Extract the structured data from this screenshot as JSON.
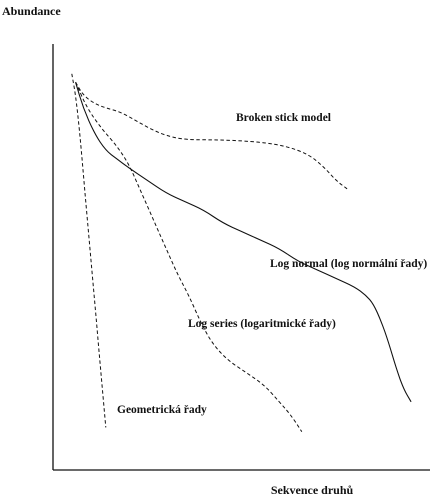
{
  "chart_data": {
    "type": "line",
    "title": "",
    "xlabel": "Sekvence druhů",
    "ylabel": "Abundance",
    "xlim": [
      0,
      100
    ],
    "ylim": [
      0,
      100
    ],
    "grid": false,
    "legend": "none",
    "series": [
      {
        "name": "Broken stick model",
        "style": "dashed",
        "points": [
          [
            6,
            91
          ],
          [
            8,
            88
          ],
          [
            11,
            86
          ],
          [
            14,
            85
          ],
          [
            18,
            84
          ],
          [
            22,
            82
          ],
          [
            26,
            80
          ],
          [
            30,
            78.5
          ],
          [
            35,
            77.5
          ],
          [
            45,
            77.5
          ],
          [
            55,
            77
          ],
          [
            62,
            76
          ],
          [
            68,
            74
          ],
          [
            72,
            71
          ],
          [
            75,
            68
          ],
          [
            78,
            66
          ]
        ]
      },
      {
        "name": "Log normal (log normální řady)",
        "style": "solid",
        "points": [
          [
            6,
            91
          ],
          [
            8,
            85
          ],
          [
            11,
            79
          ],
          [
            14,
            75
          ],
          [
            17,
            73
          ],
          [
            20,
            71
          ],
          [
            25,
            68
          ],
          [
            30,
            65
          ],
          [
            35,
            63
          ],
          [
            40,
            61
          ],
          [
            45,
            58
          ],
          [
            50,
            56
          ],
          [
            55,
            54
          ],
          [
            60,
            52
          ],
          [
            65,
            49
          ],
          [
            70,
            47
          ],
          [
            75,
            45
          ],
          [
            80,
            43
          ],
          [
            83,
            41
          ],
          [
            85,
            39
          ],
          [
            87,
            35
          ],
          [
            89,
            30
          ],
          [
            91,
            24
          ],
          [
            93,
            19
          ],
          [
            95,
            16
          ]
        ]
      },
      {
        "name": "Log series (logaritmické řady)",
        "style": "dashed",
        "points": [
          [
            6,
            91
          ],
          [
            9,
            85
          ],
          [
            13,
            80
          ],
          [
            17,
            76
          ],
          [
            20,
            72
          ],
          [
            23,
            66
          ],
          [
            27,
            58
          ],
          [
            30,
            52
          ],
          [
            33,
            46
          ],
          [
            36,
            41
          ],
          [
            39,
            35
          ],
          [
            42,
            30
          ],
          [
            46,
            26
          ],
          [
            51,
            23
          ],
          [
            56,
            20
          ],
          [
            60,
            16
          ],
          [
            63,
            13
          ],
          [
            66,
            9
          ]
        ]
      },
      {
        "name": "Geometrická řady",
        "style": "dashed",
        "points": [
          [
            5,
            93
          ],
          [
            6,
            88
          ],
          [
            7,
            80
          ],
          [
            8,
            70
          ],
          [
            9,
            60
          ],
          [
            10,
            50
          ],
          [
            11,
            40
          ],
          [
            12,
            30
          ],
          [
            13,
            20
          ],
          [
            14,
            10
          ]
        ]
      }
    ]
  },
  "labels": {
    "broken_stick": "Broken stick model",
    "log_normal": "Log normal (log normální řady)",
    "log_series": "Log series (logaritmické řady)",
    "geometric": "Geometrická řady"
  }
}
